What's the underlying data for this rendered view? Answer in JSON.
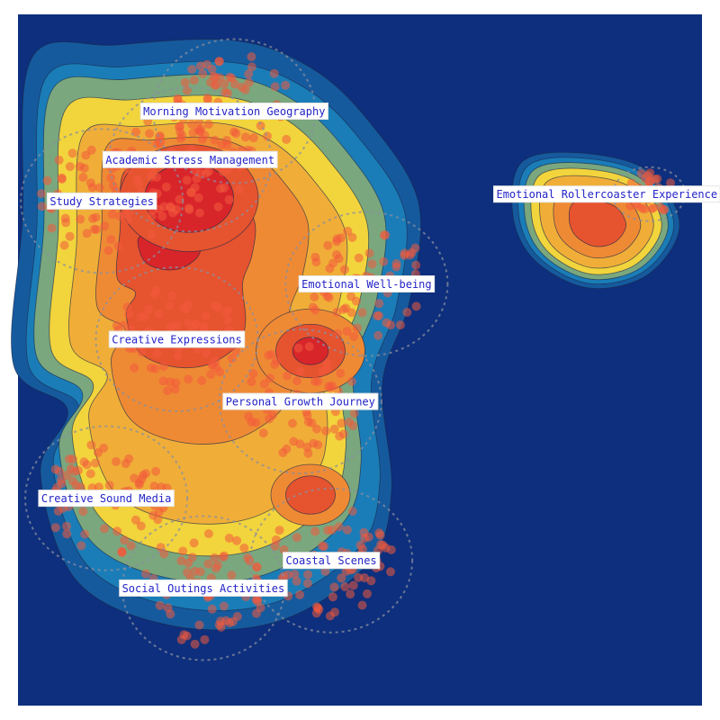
{
  "colors": {
    "background": "#0d2f7d",
    "levels": [
      "#165a9e",
      "#1a7db8",
      "#7aa77e",
      "#f2d43c",
      "#f0ae38",
      "#ef8a34",
      "#e6532f",
      "#d8252a"
    ],
    "point": "#f25a3c",
    "label_text": "#2323c8"
  },
  "chart_data": {
    "type": "scatter",
    "title": "",
    "xlabel": "",
    "ylabel": "",
    "grid": false,
    "density_contours": true,
    "clusters": [
      {
        "label": "Morning Motivation Geography",
        "x": 0.49,
        "y": 0.86
      },
      {
        "label": "Academic Stress Management",
        "x": 0.39,
        "y": 0.79
      },
      {
        "label": "Study Strategies",
        "x": 0.19,
        "y": 0.73
      },
      {
        "label": "Emotional Rollercoaster Experience",
        "x": 1.43,
        "y": 0.74
      },
      {
        "label": "Emotional Well-being",
        "x": 0.79,
        "y": 0.61
      },
      {
        "label": "Creative Expressions",
        "x": 0.36,
        "y": 0.53
      },
      {
        "label": "Personal Growth Journey",
        "x": 0.64,
        "y": 0.44
      },
      {
        "label": "Creative Sound Media",
        "x": 0.2,
        "y": 0.3
      },
      {
        "label": "Coastal Scenes",
        "x": 0.71,
        "y": 0.21
      },
      {
        "label": "Social Outings Activities",
        "x": 0.42,
        "y": 0.17
      }
    ]
  }
}
